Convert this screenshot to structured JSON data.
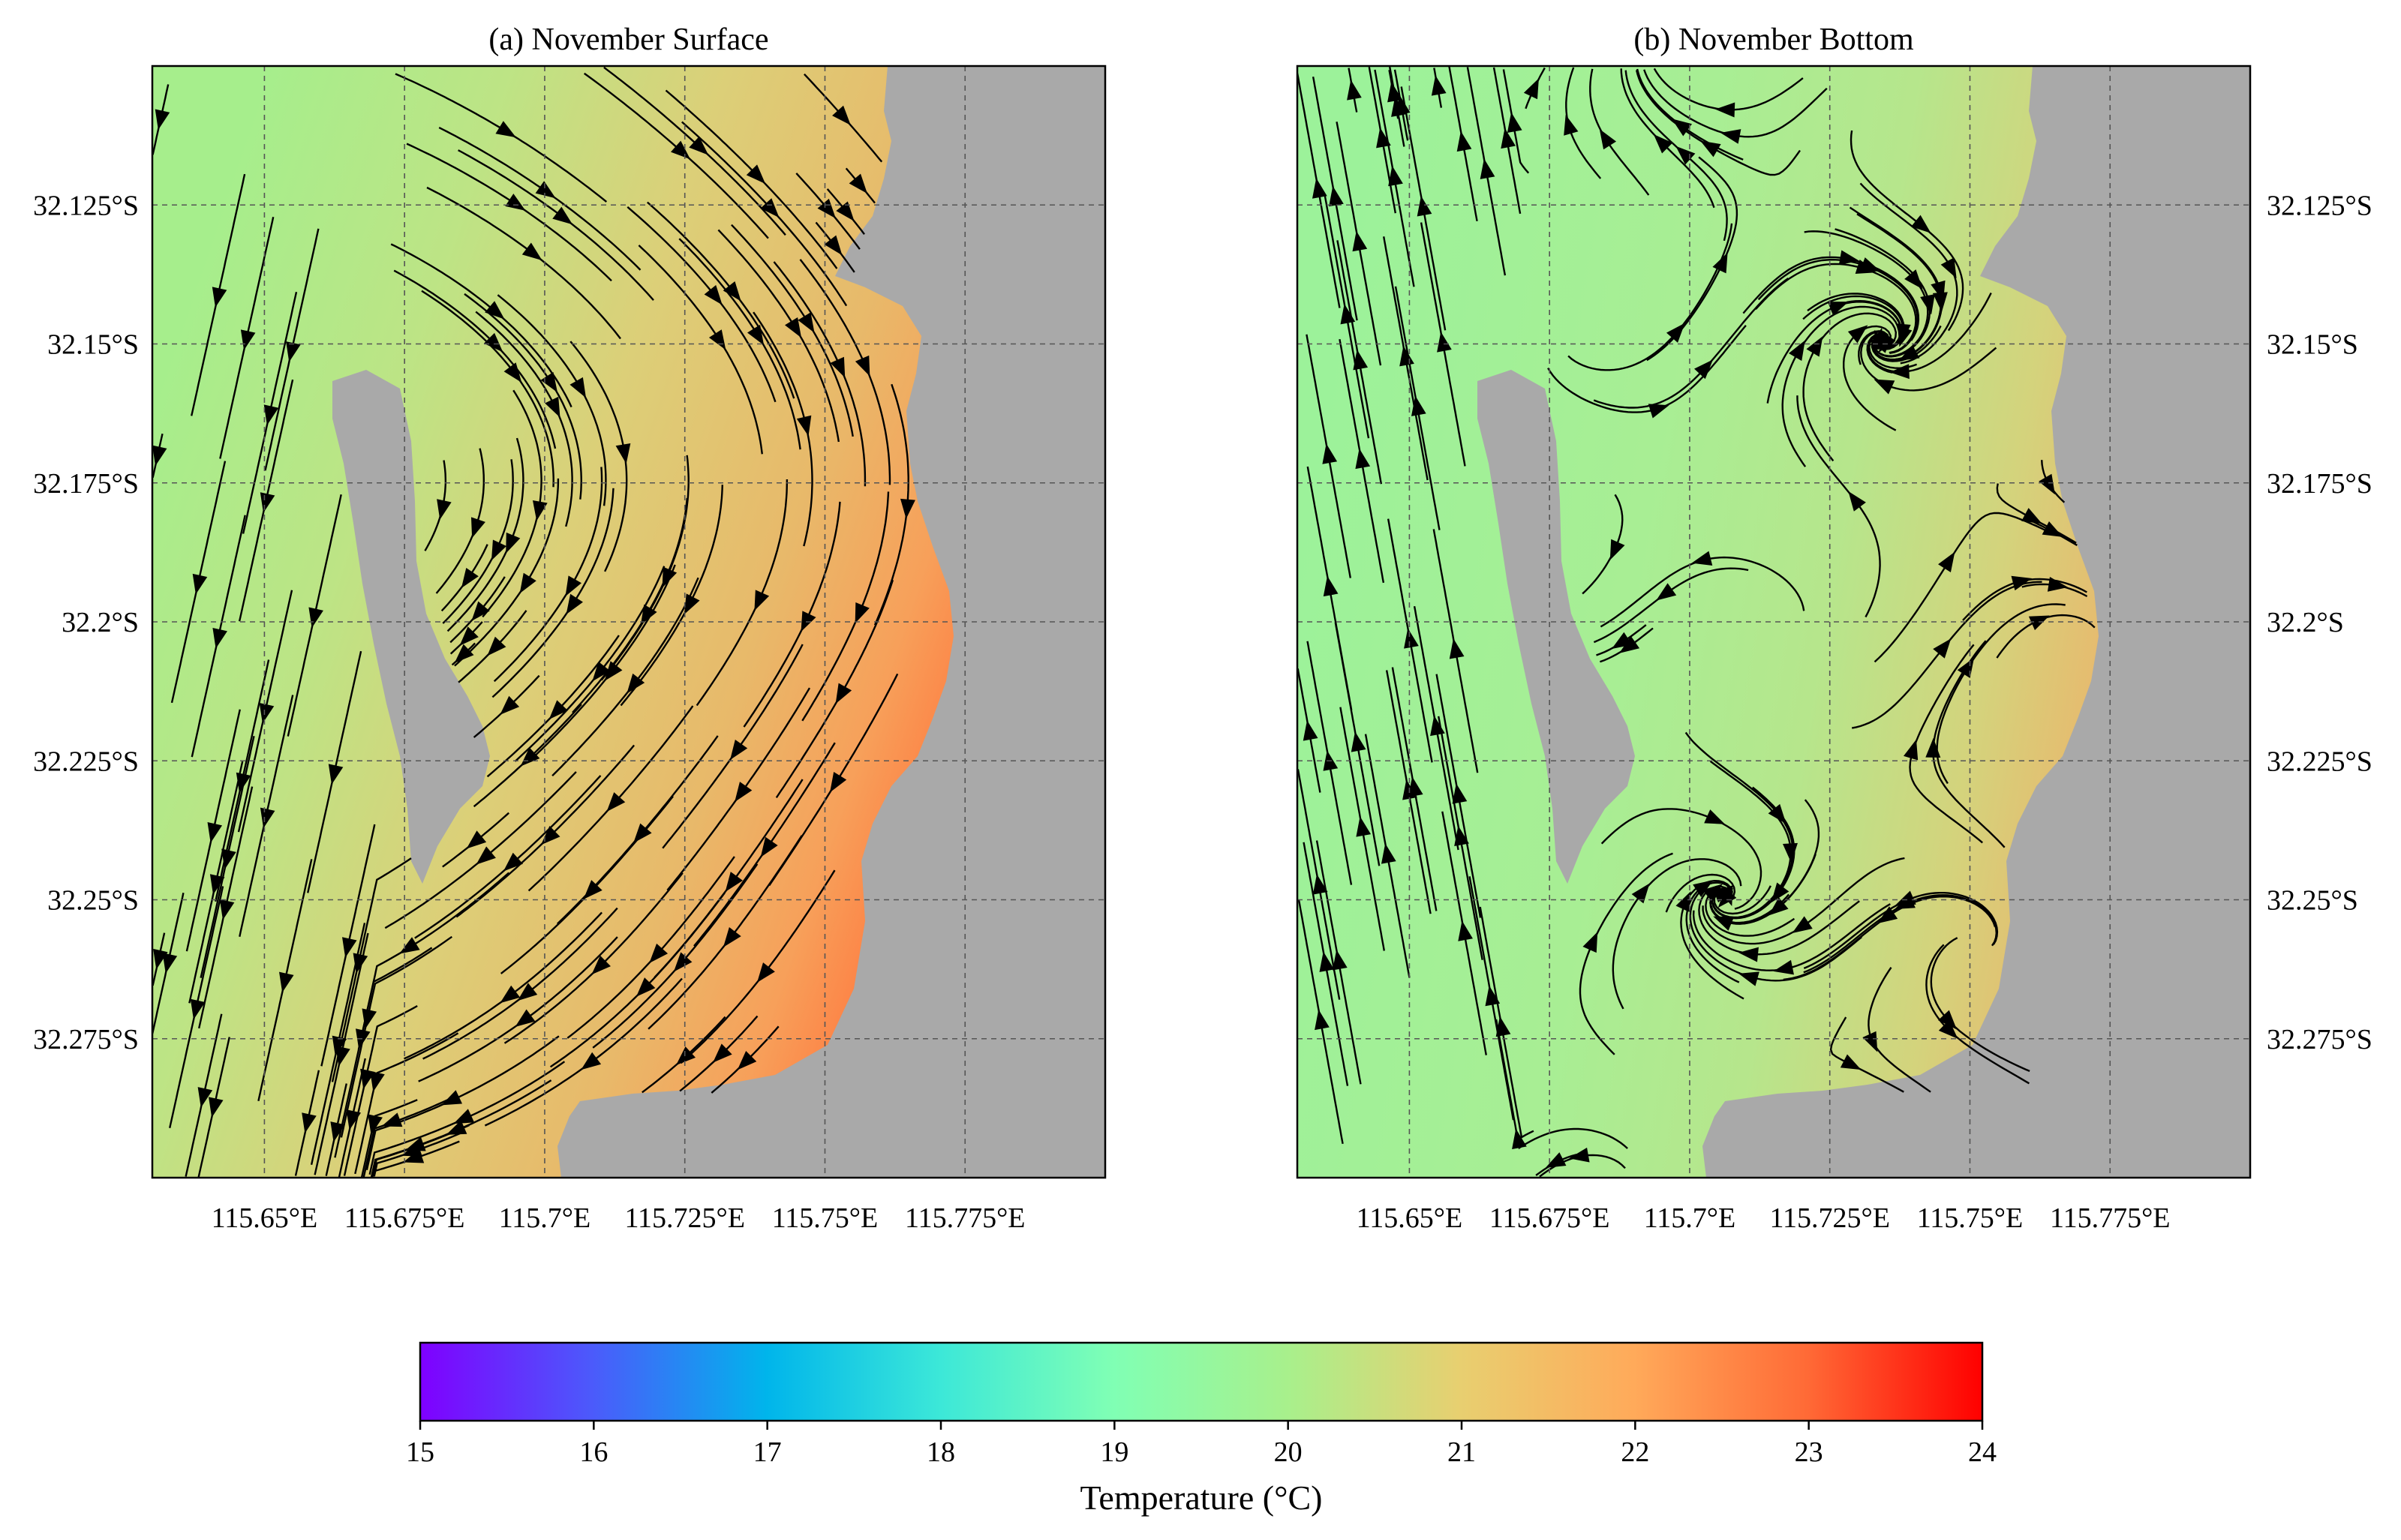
{
  "panels": [
    {
      "id": "surface",
      "title": "(a) November Surface",
      "lat_labels_side": "left",
      "temperature_note": "warmer, orange-red near eastern shore",
      "temp_range": [
        19.6,
        23.6
      ]
    },
    {
      "id": "bottom",
      "title": "(b) November Bottom",
      "lat_labels_side": "right",
      "temperature_note": "cooler, green with orange along shore",
      "temp_range": [
        19.4,
        22.4
      ]
    }
  ],
  "axes": {
    "lon_ticks": [
      "115.65°E",
      "115.675°E",
      "115.7°E",
      "115.725°E",
      "115.75°E",
      "115.775°E"
    ],
    "lon_values": [
      115.65,
      115.675,
      115.7,
      115.725,
      115.75,
      115.775
    ],
    "lat_ticks": [
      "32.125°S",
      "32.15°S",
      "32.175°S",
      "32.2°S",
      "32.225°S",
      "32.25°S",
      "32.275°S"
    ],
    "lat_values": [
      32.125,
      32.15,
      32.175,
      32.2,
      32.225,
      32.25,
      32.275
    ],
    "lon_range": [
      115.63,
      115.8
    ],
    "lat_range": [
      32.1,
      32.3
    ],
    "grid": "dashed"
  },
  "colorbar": {
    "label": "Temperature (°C)",
    "ticks": [
      "15",
      "16",
      "17",
      "18",
      "19",
      "20",
      "21",
      "22",
      "23",
      "24"
    ],
    "range": [
      15,
      24
    ],
    "colormap": "rainbow",
    "colors": [
      "#7f00ff",
      "#4060fb",
      "#00b5eb",
      "#3ce8d8",
      "#80ffb4",
      "#a8f08c",
      "#e8cf70",
      "#ffaa5a",
      "#ff6a36",
      "#ff0000"
    ]
  },
  "colors": {
    "land": "#a9a9a9",
    "streamline": "#000000"
  }
}
